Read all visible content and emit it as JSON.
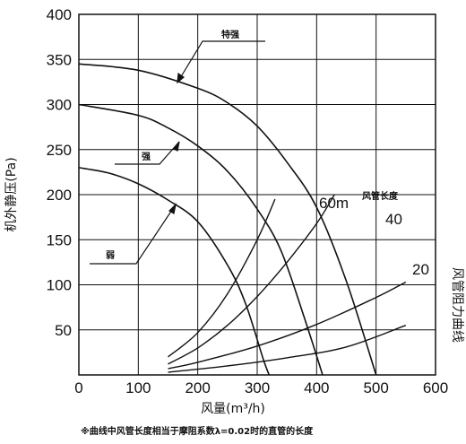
{
  "chart_data": {
    "type": "line",
    "xlabel": "风量(m³/h)",
    "ylabel": "机外静压(Pa)",
    "right_label": "风管阻力曲线",
    "footnote": "※曲线中风管长度相当于摩阻系数λ=0.02时的直管的长度",
    "xlim": [
      0,
      600
    ],
    "ylim": [
      0,
      400
    ],
    "xticks": [
      "0",
      "100",
      "200",
      "300",
      "400",
      "500",
      "600"
    ],
    "yticks": [
      "50",
      "100",
      "150",
      "200",
      "250",
      "300",
      "350",
      "400"
    ],
    "grid": true,
    "fan_curves": [
      {
        "name": "特强",
        "x": [
          0,
          100,
          200,
          250,
          300,
          350,
          400,
          450,
          500
        ],
        "y": [
          345,
          338,
          318,
          302,
          276,
          236,
          186,
          104,
          0
        ]
      },
      {
        "name": "强",
        "x": [
          0,
          100,
          150,
          200,
          250,
          300,
          340,
          380,
          410
        ],
        "y": [
          300,
          288,
          274,
          254,
          226,
          184,
          138,
          62,
          0
        ]
      },
      {
        "name": "弱",
        "x": [
          0,
          50,
          100,
          150,
          200,
          250,
          280,
          310,
          320
        ],
        "y": [
          230,
          224,
          212,
          194,
          170,
          122,
          80,
          18,
          0
        ]
      }
    ],
    "duct_curves": [
      {
        "name": "60m",
        "x": [
          150,
          200,
          250,
          300,
          330
        ],
        "y": [
          20,
          47,
          90,
          150,
          195
        ]
      },
      {
        "name": "40",
        "x": [
          150,
          200,
          250,
          300,
          350,
          400,
          430
        ],
        "y": [
          12,
          30,
          55,
          87,
          125,
          168,
          200
        ]
      },
      {
        "name": "20",
        "x": [
          150,
          200,
          300,
          400,
          500,
          550
        ],
        "y": [
          7,
          14,
          32,
          56,
          86,
          103
        ]
      },
      {
        "name": "",
        "x": [
          150,
          250,
          350,
          450,
          550
        ],
        "y": [
          3,
          10,
          19,
          31,
          55
        ]
      }
    ],
    "annotations": {
      "te_qiang": "特强",
      "qiang": "强",
      "ruo": "弱",
      "duct_length": "风管长度"
    }
  }
}
